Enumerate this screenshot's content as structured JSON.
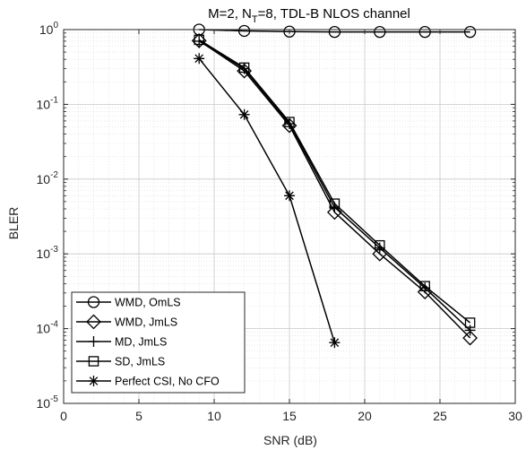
{
  "chart_data": {
    "type": "line",
    "title": {
      "pre": "M=2, N",
      "sub": "T",
      "post": "=8, TDL-B NLOS channel"
    },
    "xlabel": "SNR (dB)",
    "ylabel": "BLER",
    "xlim": [
      0,
      30
    ],
    "ylim": [
      1e-05,
      1
    ],
    "yscale": "log",
    "grid": true,
    "legend_position": "bottom-left",
    "x_ticks": [
      {
        "value": 0,
        "label": "0"
      },
      {
        "value": 5,
        "label": "5"
      },
      {
        "value": 10,
        "label": "10"
      },
      {
        "value": 15,
        "label": "15"
      },
      {
        "value": 20,
        "label": "20"
      },
      {
        "value": 25,
        "label": "25"
      },
      {
        "value": 30,
        "label": "30"
      }
    ],
    "y_ticks": [
      {
        "value": 1,
        "base": "10",
        "exp": "0"
      },
      {
        "value": 0.1,
        "base": "10",
        "exp": "-1"
      },
      {
        "value": 0.01,
        "base": "10",
        "exp": "-2"
      },
      {
        "value": 0.001,
        "base": "10",
        "exp": "-3"
      },
      {
        "value": 0.0001,
        "base": "10",
        "exp": "-4"
      },
      {
        "value": 1e-05,
        "base": "10",
        "exp": "-5"
      }
    ],
    "series": [
      {
        "name": "WMD, OmLS",
        "marker": "circle",
        "color": "#000000",
        "x": [
          9,
          12,
          15,
          18,
          21,
          24,
          27
        ],
        "y": [
          1.0,
          0.96,
          0.94,
          0.93,
          0.93,
          0.93,
          0.93
        ]
      },
      {
        "name": "WMD, JmLS",
        "marker": "diamond",
        "color": "#000000",
        "x": [
          9,
          12,
          15,
          18,
          21,
          24,
          27
        ],
        "y": [
          0.71,
          0.28,
          0.052,
          0.0036,
          0.001,
          0.00031,
          7.5e-05
        ]
      },
      {
        "name": "MD, JmLS",
        "marker": "plus",
        "color": "#000000",
        "x": [
          9,
          12,
          15,
          18,
          21,
          24,
          27
        ],
        "y": [
          0.7,
          0.3,
          0.055,
          0.0042,
          0.0012,
          0.00035,
          9.5e-05
        ]
      },
      {
        "name": "SD, JmLS",
        "marker": "square",
        "color": "#000000",
        "x": [
          9,
          12,
          15,
          18,
          21,
          24,
          27
        ],
        "y": [
          0.73,
          0.31,
          0.058,
          0.0047,
          0.0013,
          0.00037,
          0.00012
        ]
      },
      {
        "name": "Perfect CSI, No CFO",
        "marker": "asterisk",
        "color": "#000000",
        "x": [
          9,
          12,
          15,
          18
        ],
        "y": [
          0.41,
          0.073,
          0.006,
          6.5e-05
        ]
      }
    ]
  }
}
